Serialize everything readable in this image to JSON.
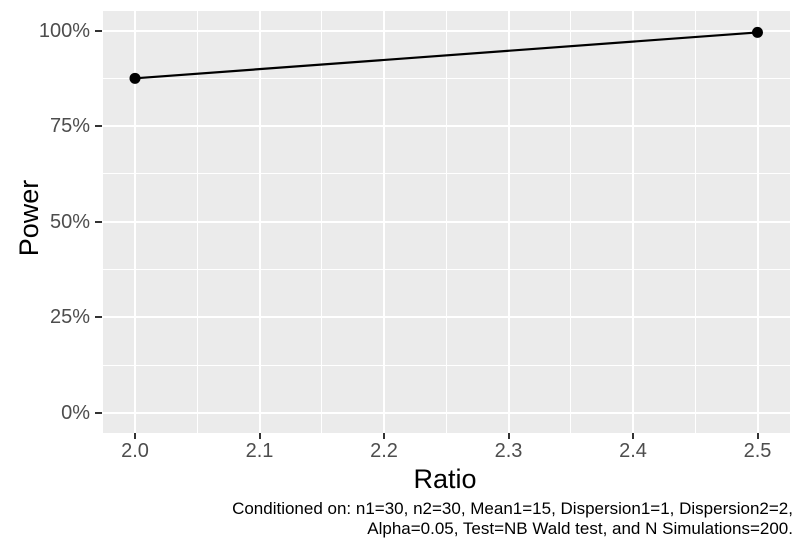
{
  "chart_data": {
    "type": "line",
    "title": "",
    "xlabel": "Ratio",
    "ylabel": "Power",
    "x_ticks": [
      2.0,
      2.1,
      2.2,
      2.3,
      2.4,
      2.5
    ],
    "x_tick_labels": [
      "2.0",
      "2.1",
      "2.2",
      "2.3",
      "2.4",
      "2.5"
    ],
    "x_minor_ticks": [
      2.05,
      2.15,
      2.25,
      2.35,
      2.45
    ],
    "y_ticks": [
      0,
      25,
      50,
      75,
      100
    ],
    "y_tick_labels": [
      "0%",
      "25%",
      "50%",
      "75%",
      "100%"
    ],
    "y_minor_ticks": [
      12.5,
      37.5,
      62.5,
      87.5
    ],
    "xlim": [
      1.975,
      2.525
    ],
    "ylim": [
      -5,
      105
    ],
    "grid": "on",
    "legend": "none",
    "series": [
      {
        "name": "Power",
        "x": [
          2.0,
          2.5
        ],
        "y": [
          87.5,
          99.5
        ]
      }
    ]
  },
  "caption": {
    "line1": "Conditioned on: n1=30, n2=30, Mean1=15, Dispersion1=1, Dispersion2=2,",
    "line2": "Alpha=0.05, Test=NB Wald test, and N Simulations=200."
  },
  "colors": {
    "panel_background": "#EBEBEB",
    "gridline": "#FFFFFF",
    "line": "#000000",
    "point": "#000000",
    "tick_label": "#4D4D4D",
    "axis_title": "#000000",
    "tick_mark": "#333333",
    "caption_text": "#000000"
  }
}
